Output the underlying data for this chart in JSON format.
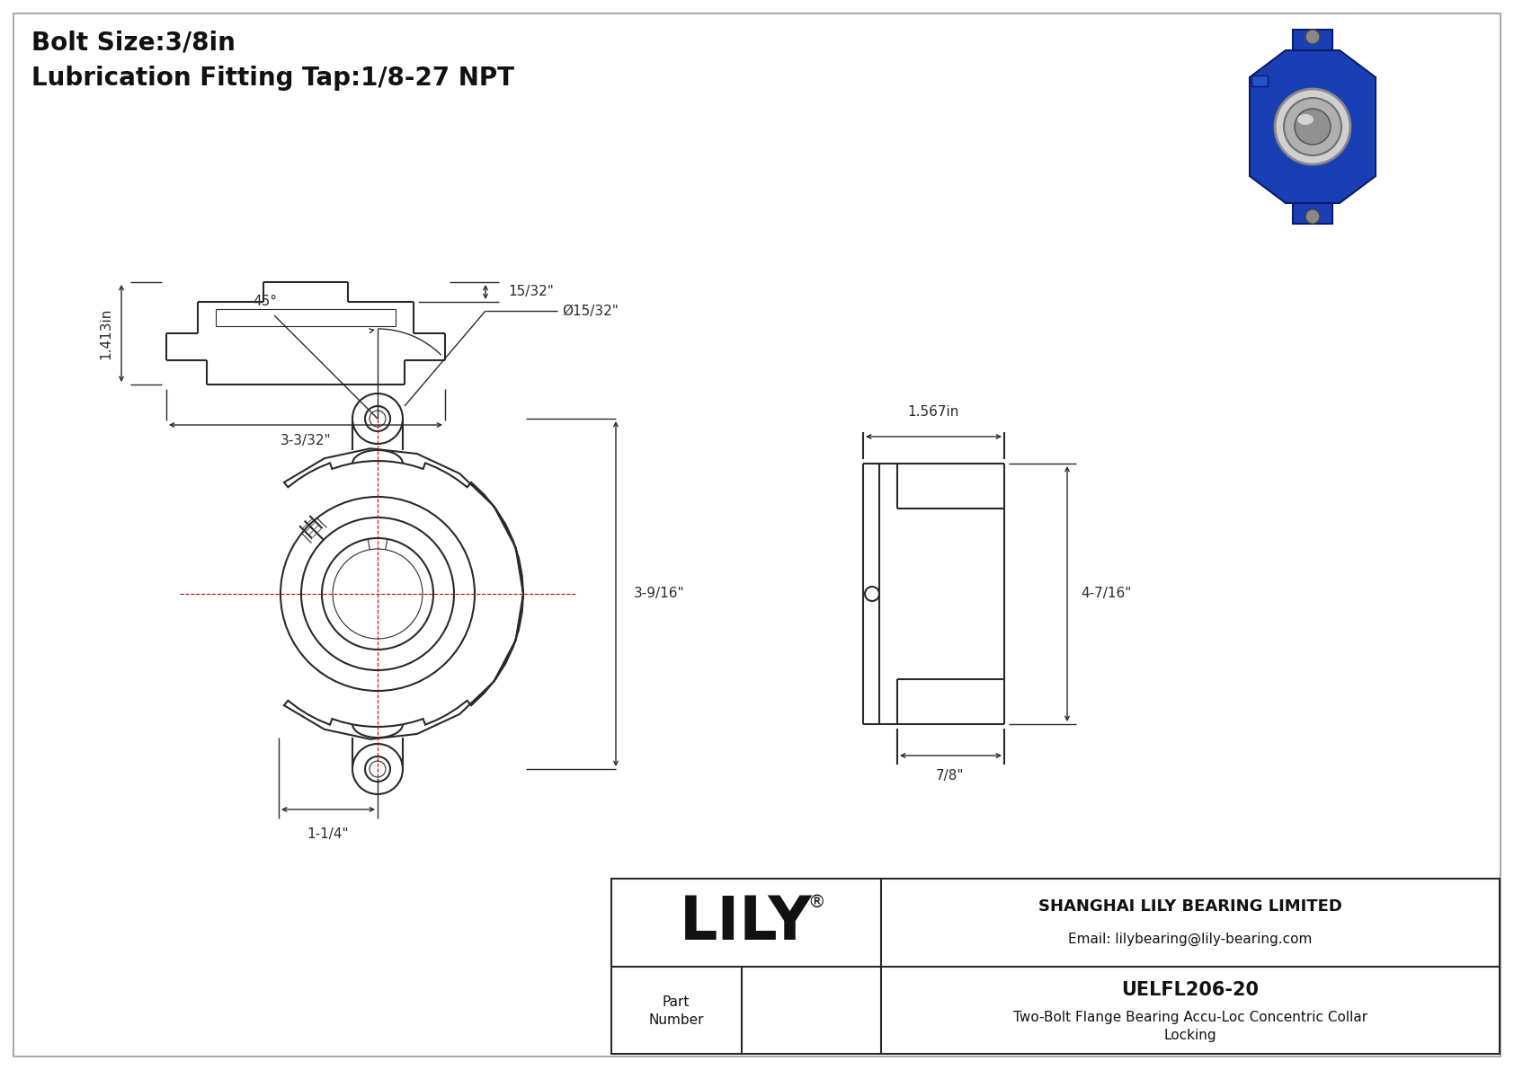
{
  "line_color": "#2a2a2a",
  "dim_color": "#2a2a2a",
  "red_color": "#cc0000",
  "title_line1": "Bolt Size:3/8in",
  "title_line2": "Lubrication Fitting Tap:1/8-27 NPT",
  "company": "SHANGHAI LILY BEARING LIMITED",
  "email": "Email: lilybearing@lily-bearing.com",
  "part_number": "UELFL206-20",
  "part_desc": "Two-Bolt Flange Bearing Accu-Loc Concentric Collar",
  "part_desc2": "Locking",
  "logo": "LILY",
  "logo_super": "®",
  "dim_bolt_hole": "Ø15/32\"",
  "dim_width": "3-9/16\"",
  "dim_bc": "1-1/4\"",
  "dim_45": "45°",
  "dim_side_w": "1.567in",
  "dim_side_h": "4-7/16\"",
  "dim_side_b": "7/8\"",
  "dim_front_h": "1.413in",
  "dim_front_w": "3-3/32\"",
  "dim_front_depth": "15/32\""
}
